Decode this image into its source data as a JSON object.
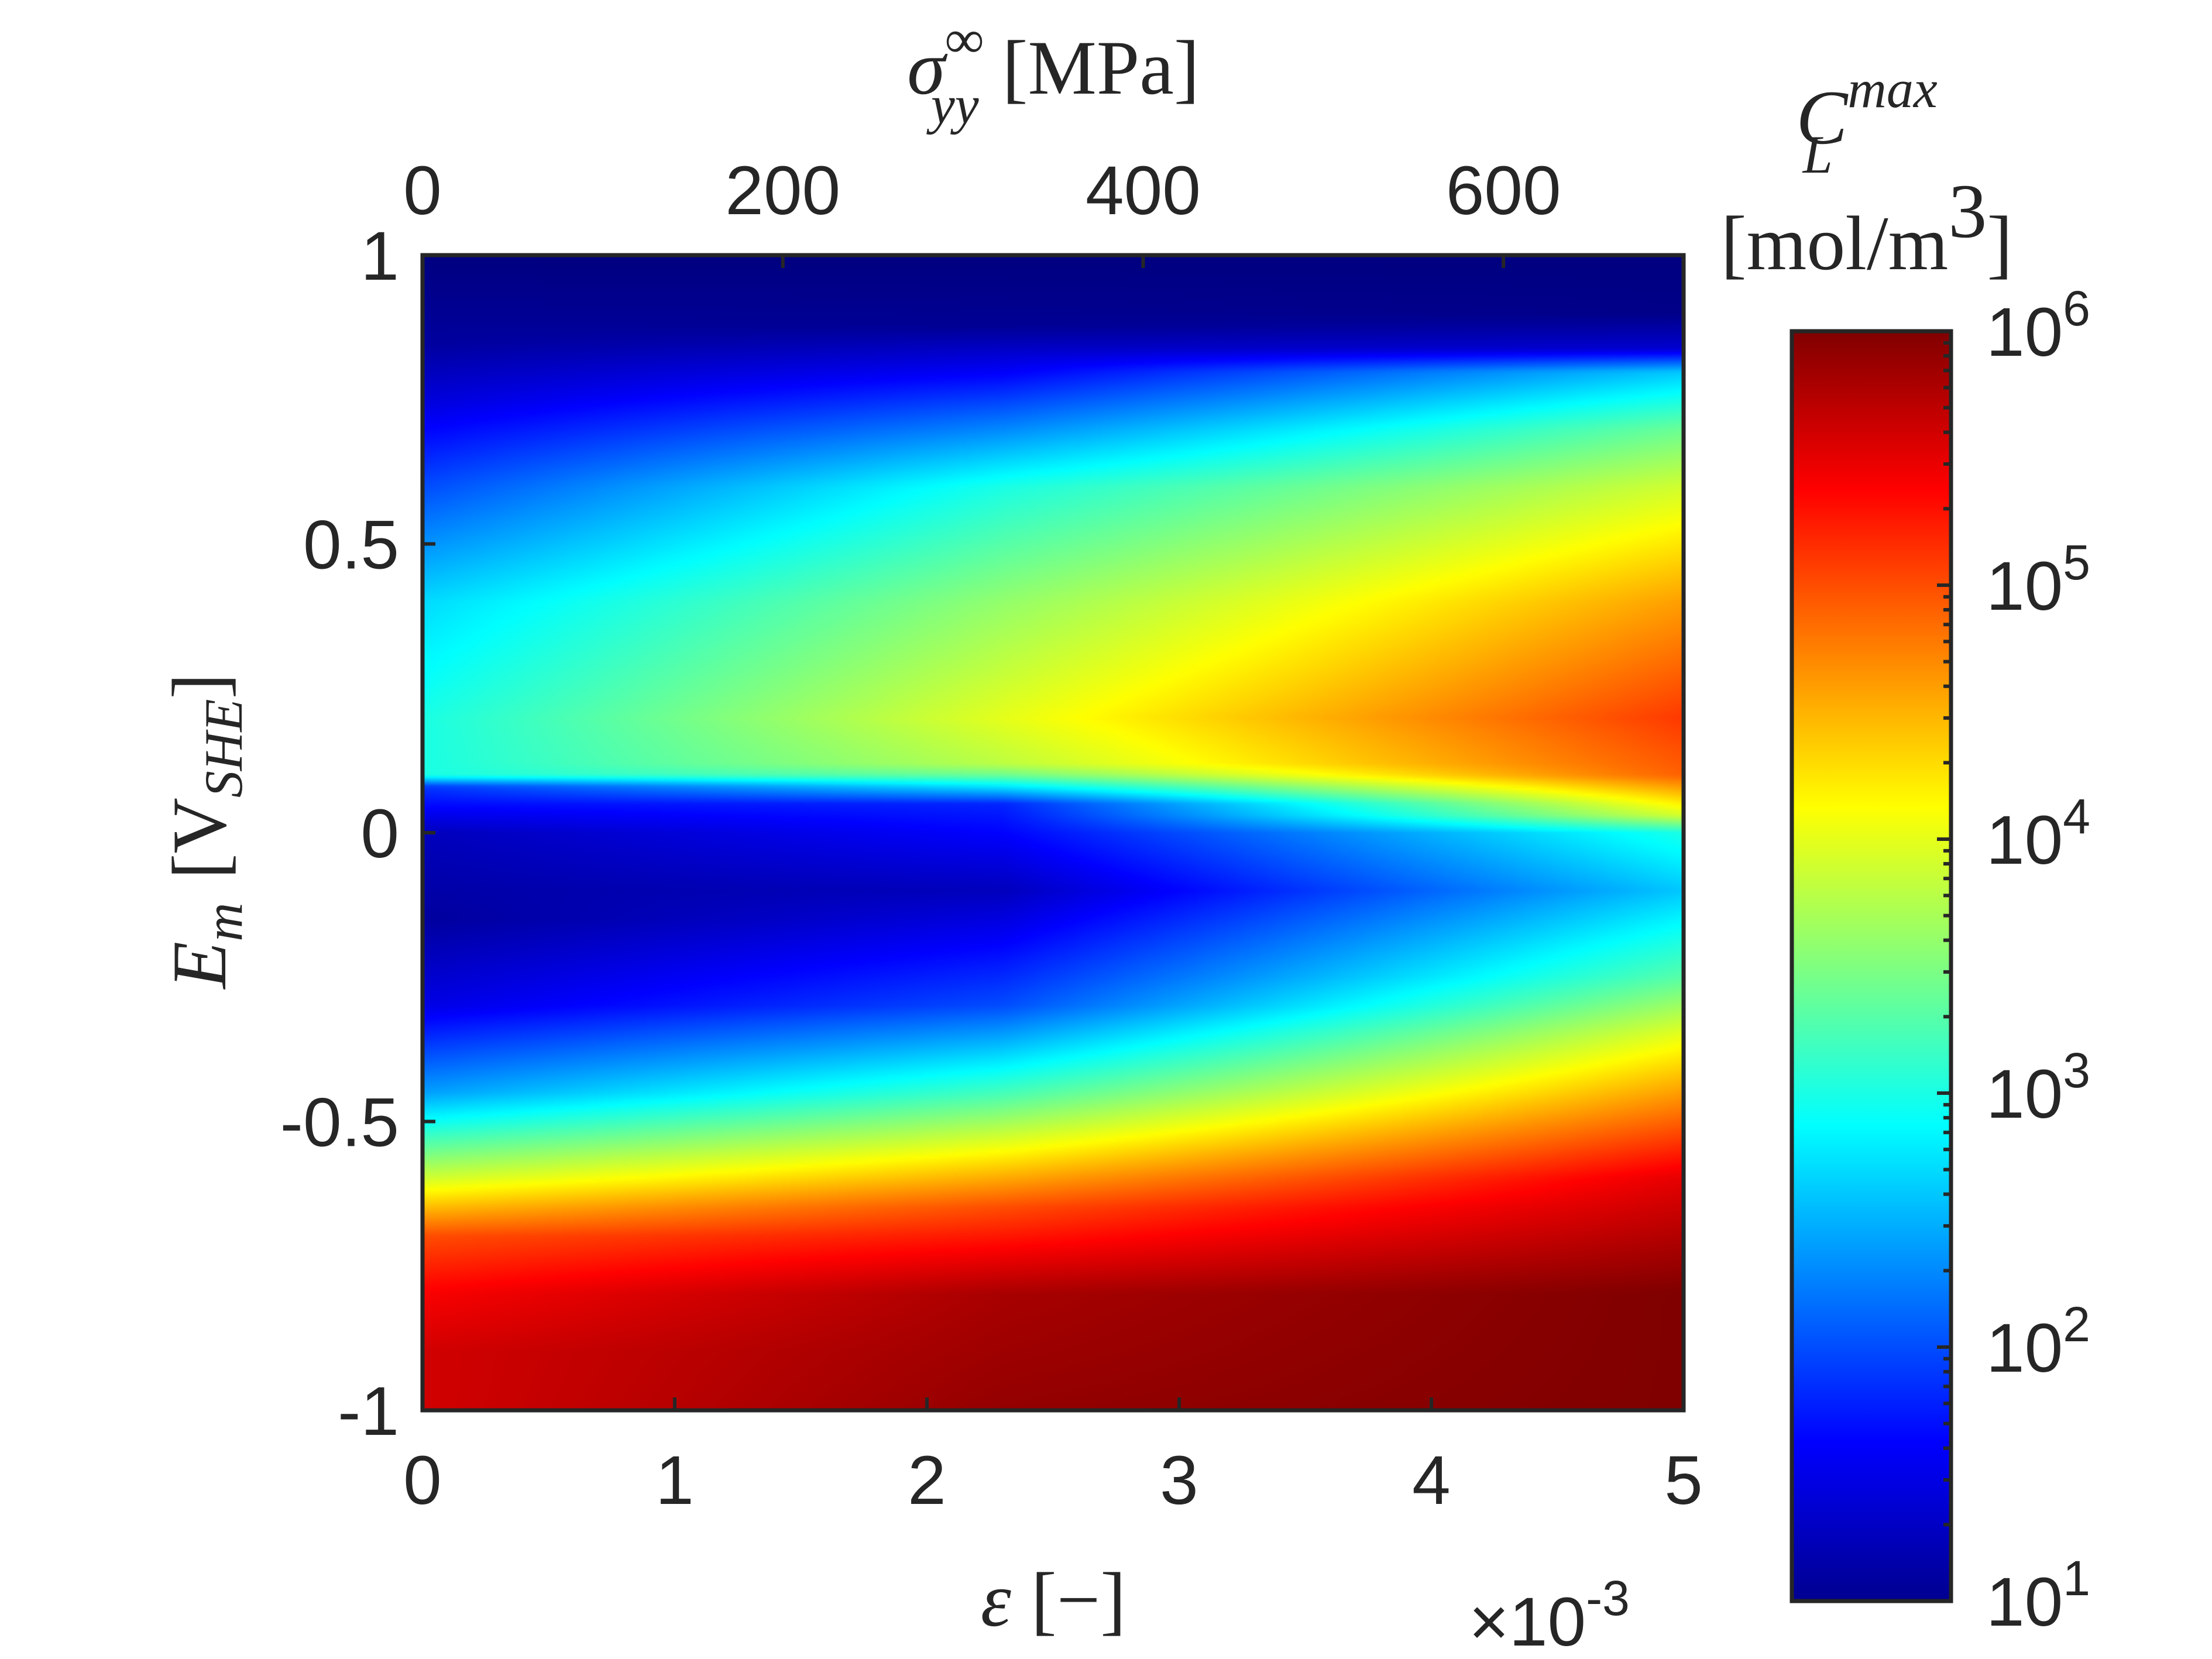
{
  "chart_data": {
    "type": "heatmap",
    "colormap": "jet",
    "colorscale": "log",
    "x": {
      "label_symbol": "ε",
      "label_unit": "[−]",
      "range": [
        0,
        5
      ],
      "ticks": [
        0,
        1,
        2,
        3,
        4,
        5
      ],
      "tick_labels": [
        "0",
        "1",
        "2",
        "3",
        "4",
        "5"
      ],
      "exponent_label": "×10",
      "exponent_power": "-3"
    },
    "x2": {
      "label_symbol": "σ",
      "label_superscript": "∞",
      "label_subscript": "yy",
      "label_unit": "[MPa]",
      "range": [
        0,
        700
      ],
      "ticks": [
        0,
        200,
        400,
        600
      ],
      "tick_labels": [
        "0",
        "200",
        "400",
        "600"
      ]
    },
    "y": {
      "label_symbol": "E",
      "label_subscript": "m",
      "label_unit_open": "[V",
      "label_unit_subscript": "SHE",
      "label_unit_close": "]",
      "range": [
        -1,
        1
      ],
      "ticks": [
        -1,
        -0.5,
        0,
        0.5,
        1
      ],
      "tick_labels": [
        "-1",
        "-0.5",
        "0",
        "0.5",
        "1"
      ]
    },
    "colorbar": {
      "title_symbol": "C",
      "title_superscript": "max",
      "title_subscript": "L",
      "title_unit": "[mol/m",
      "title_unit_power": "3",
      "title_unit_close": "]",
      "range": [
        10,
        1000000
      ],
      "ticks": [
        {
          "base": "10",
          "power": "1",
          "value": 10
        },
        {
          "base": "10",
          "power": "2",
          "value": 100
        },
        {
          "base": "10",
          "power": "3",
          "value": 1000
        },
        {
          "base": "10",
          "power": "4",
          "value": 10000
        },
        {
          "base": "10",
          "power": "5",
          "value": 100000
        },
        {
          "base": "10",
          "power": "6",
          "value": 1000000
        }
      ]
    },
    "log10_field_by_strain": [
      {
        "strain": 0.0,
        "rows": [
          [
            1.0,
            1.0
          ],
          [
            0.85,
            1.15
          ],
          [
            0.75,
            1.45
          ],
          [
            0.6,
            2.0
          ],
          [
            0.4,
            2.7
          ],
          [
            0.2,
            3.0
          ],
          [
            0.1,
            3.0
          ],
          [
            0.08,
            1.9
          ],
          [
            0.0,
            1.3
          ],
          [
            -0.15,
            1.15
          ],
          [
            -0.3,
            1.5
          ],
          [
            -0.45,
            2.4
          ],
          [
            -0.6,
            3.9
          ],
          [
            -0.7,
            5.0
          ],
          [
            -0.8,
            5.4
          ],
          [
            -0.9,
            5.6
          ],
          [
            -1.0,
            5.6
          ]
        ]
      },
      {
        "strain": 2.3,
        "rows": [
          [
            1.0,
            1.0
          ],
          [
            0.88,
            1.1
          ],
          [
            0.8,
            1.6
          ],
          [
            0.6,
            3.0
          ],
          [
            0.4,
            3.6
          ],
          [
            0.2,
            4.0
          ],
          [
            0.12,
            3.8
          ],
          [
            0.1,
            3.4
          ],
          [
            0.05,
            1.8
          ],
          [
            -0.1,
            1.3
          ],
          [
            -0.3,
            2.0
          ],
          [
            -0.45,
            3.2
          ],
          [
            -0.55,
            4.1
          ],
          [
            -0.65,
            5.0
          ],
          [
            -0.8,
            5.8
          ],
          [
            -1.0,
            5.9
          ]
        ]
      },
      {
        "strain": 5.0,
        "rows": [
          [
            1.0,
            1.0
          ],
          [
            0.9,
            1.05
          ],
          [
            0.84,
            1.4
          ],
          [
            0.8,
            2.6
          ],
          [
            0.7,
            3.4
          ],
          [
            0.6,
            3.9
          ],
          [
            0.4,
            4.6
          ],
          [
            0.2,
            5.1
          ],
          [
            0.1,
            4.9
          ],
          [
            0.03,
            3.9
          ],
          [
            0.0,
            3.0
          ],
          [
            -0.1,
            2.6
          ],
          [
            -0.25,
            3.3
          ],
          [
            -0.35,
            4.0
          ],
          [
            -0.5,
            4.9
          ],
          [
            -0.6,
            5.5
          ],
          [
            -0.8,
            6.0
          ],
          [
            -1.0,
            6.0
          ]
        ]
      }
    ]
  }
}
